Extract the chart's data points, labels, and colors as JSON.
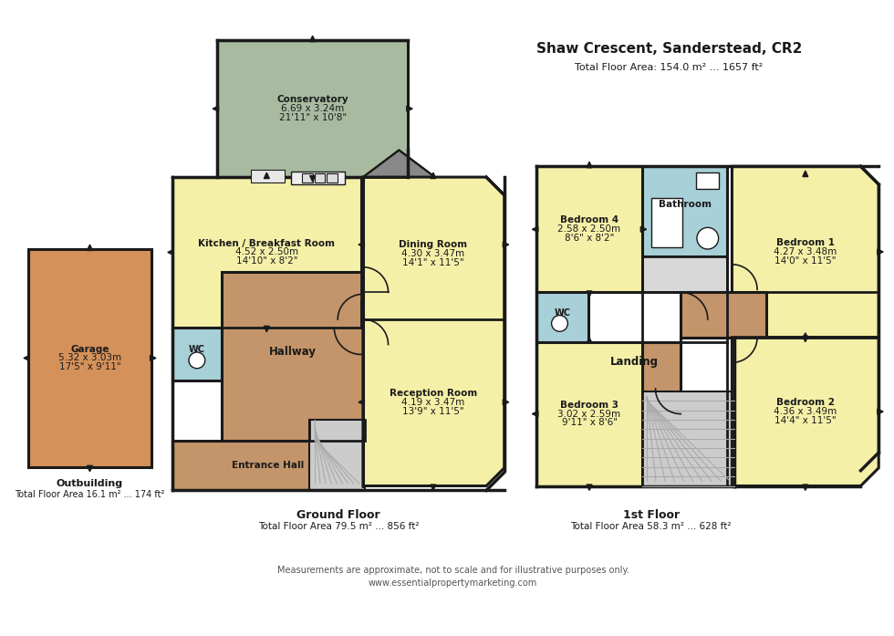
{
  "title": "Shaw Crescent, Sanderstead, CR2",
  "total_floor_area": "Total Floor Area: 154.0 m² ... 1657 ft²",
  "ground_floor_label": "Ground Floor",
  "ground_floor_area": "Total Floor Area 79.5 m² ... 856 ft²",
  "first_floor_label": "1st Floor",
  "first_floor_area": "Total Floor Area 58.3 m² ... 628 ft²",
  "outbuilding_label": "Outbuilding",
  "outbuilding_area": "Total Floor Area 16.1 m² ... 174 ft²",
  "footer1": "Measurements are approximate, not to scale and for illustrative purposes only.",
  "footer2": "www.essentialpropertymarketing.com",
  "colors": {
    "yellow": "#F5F0A8",
    "brown": "#C4956A",
    "green": "#A8BBA0",
    "blue": "#A8D0D8",
    "white": "#FFFFFF",
    "black": "#1A1A1A",
    "orange": "#D4915A",
    "light_gray": "#D8D8D8",
    "mid_gray": "#AAAAAA",
    "dark_gray": "#666666",
    "stair_gray": "#CCCCCC"
  },
  "rooms": {
    "conservatory": {
      "label": "Conservatory",
      "sub1": "6.69 x 3.24m",
      "sub2": "21'11\" x 10'8\""
    },
    "kitchen": {
      "label": "Kitchen / Breakfast Room",
      "sub1": "4.52 x 2.50m",
      "sub2": "14'10\" x 8'2\""
    },
    "dining": {
      "label": "Dining Room",
      "sub1": "4.30 x 3.47m",
      "sub2": "14'1\" x 11'5\""
    },
    "hallway": {
      "label": "Hallway",
      "sub1": "",
      "sub2": ""
    },
    "reception": {
      "label": "Reception Room",
      "sub1": "4.19 x 3.47m",
      "sub2": "13'9\" x 11'5\""
    },
    "entrance": {
      "label": "Entrance Hall",
      "sub1": "",
      "sub2": ""
    },
    "wc_gnd": {
      "label": "WC",
      "sub1": "",
      "sub2": ""
    },
    "garage": {
      "label": "Garage",
      "sub1": "5.32 x 3.03m",
      "sub2": "17'5\" x 9'11\""
    },
    "bedroom1": {
      "label": "Bedroom 1",
      "sub1": "4.27 x 3.48m",
      "sub2": "14'0\" x 11'5\""
    },
    "bedroom2": {
      "label": "Bedroom 2",
      "sub1": "4.36 x 3.49m",
      "sub2": "14'4\" x 11'5\""
    },
    "bedroom3": {
      "label": "Bedroom 3",
      "sub1": "3.02 x 2.59m",
      "sub2": "9'11\" x 8'6\""
    },
    "bedroom4": {
      "label": "Bedroom 4",
      "sub1": "2.58 x 2.50m",
      "sub2": "8'6\" x 8'2\""
    },
    "bathroom": {
      "label": "Bathroom",
      "sub1": "",
      "sub2": ""
    },
    "landing": {
      "label": "Landing",
      "sub1": "",
      "sub2": ""
    },
    "wc_1st": {
      "label": "WC",
      "sub1": "",
      "sub2": ""
    }
  }
}
